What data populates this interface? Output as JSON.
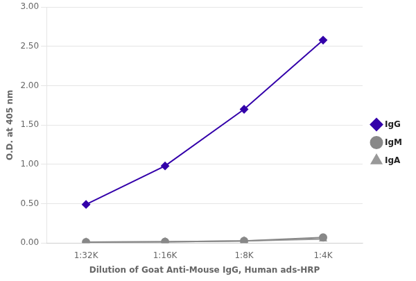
{
  "chart_data": {
    "type": "line",
    "xlabel": "Dilution of Goat Anti-Mouse IgG, Human ads-HRP",
    "ylabel": "O.D. at 405 nm",
    "categories": [
      "1:32K",
      "1:16K",
      "1:8K",
      "1:4K"
    ],
    "series": [
      {
        "name": "IgG",
        "color": "#3300aa",
        "marker": "diamond",
        "values": [
          0.49,
          0.98,
          1.7,
          2.58
        ]
      },
      {
        "name": "IgM",
        "color": "#888888",
        "marker": "circle",
        "values": [
          0.01,
          0.015,
          0.025,
          0.07
        ]
      },
      {
        "name": "IgA",
        "color": "#999999",
        "marker": "triangle",
        "values": [
          0.01,
          0.015,
          0.025,
          0.05
        ]
      }
    ],
    "ylim": [
      0.0,
      3.0
    ],
    "yticks": [
      {
        "value": 0.0,
        "label": "0.00"
      },
      {
        "value": 0.5,
        "label": "0.50"
      },
      {
        "value": 1.0,
        "label": "1.00"
      },
      {
        "value": 1.5,
        "label": "1.50"
      },
      {
        "value": 2.0,
        "label": "2.00"
      },
      {
        "value": 2.5,
        "label": "2.50"
      },
      {
        "value": 3.0,
        "label": "3.00"
      }
    ],
    "grid": "y",
    "legend": "right"
  }
}
